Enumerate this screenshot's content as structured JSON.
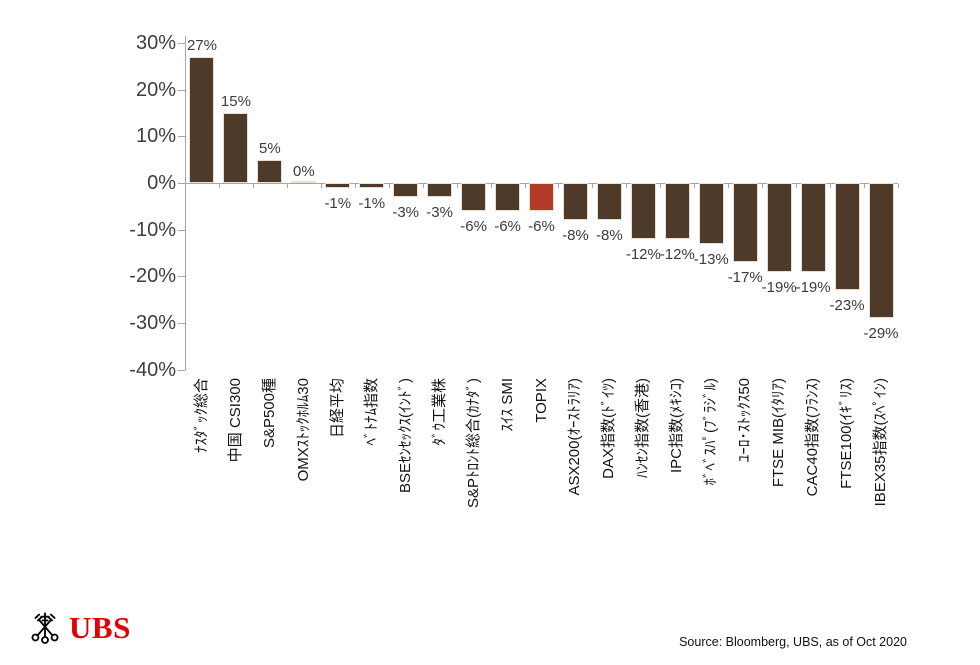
{
  "chart_data": {
    "type": "bar",
    "categories": [
      "ﾅｽﾀﾞｯｸ総合",
      "中国 CSI300",
      "S&P500種",
      "OMXｽﾄｯｸﾎﾙﾑ30",
      "日経平均",
      "ﾍﾞﾄﾅﾑ指数",
      "BSEｾﾝｾｯｸｽ(ｲﾝﾄﾞ)",
      "ﾀﾞｳ工業株",
      "S&Pﾄﾛﾝﾄ総合(ｶﾅﾀﾞ)",
      "ｽｲｽ SMI",
      "TOPIX",
      "ASX200(ｵｰｽﾄﾗﾘｱ)",
      "DAX指数(ﾄﾞｲﾂ)",
      "ﾊﾝｾﾝ指数(香港)",
      "IPC指数(ﾒｷｼｺ)",
      "ﾎﾞﾍﾞｽﾊﾟ(ﾌﾞﾗｼﾞﾙ)",
      "ﾕｰﾛ･ｽﾄｯｸｽ50",
      "FTSE MIB(ｲﾀﾘｱ)",
      "CAC40指数(ﾌﾗﾝｽ)",
      "FTSE100(ｲｷﾞﾘｽ)",
      "IBEX35指数(ｽﾍﾟｲﾝ)"
    ],
    "values": [
      27,
      15,
      5,
      0,
      -1,
      -1,
      -3,
      -3,
      -6,
      -6,
      -6,
      -8,
      -8,
      -12,
      -12,
      -13,
      -17,
      -19,
      -19,
      -23,
      -29
    ],
    "value_labels": [
      "27%",
      "15%",
      "5%",
      "0%",
      "-1%",
      "-1%",
      "-3%",
      "-3%",
      "-6%",
      "-6%",
      "-6%",
      "-8%",
      "-8%",
      "-12%",
      "-12%",
      "-13%",
      "-17%",
      "-19%",
      "-19%",
      "-23%",
      "-29%"
    ],
    "highlight_index": 10,
    "highlight_category": "TOPIX",
    "y_ticks": [
      "30%",
      "20%",
      "10%",
      "0%",
      "-10%",
      "-20%",
      "-30%",
      "-40%"
    ],
    "y_tick_values": [
      30,
      20,
      10,
      0,
      -10,
      -20,
      -30,
      -40
    ],
    "ylim": [
      -40,
      30
    ],
    "grid": "off",
    "legend": "none",
    "bar_color": "#4d3a29",
    "highlight_color": "#b23a27",
    "bar_border_color": "#eadfd0",
    "axis_color": "#a6a6a6",
    "label_color": "#3c3c3c"
  },
  "footer": {
    "logo_text": "UBS",
    "logo_color": "#e30000",
    "source": "Source: Bloomberg, UBS, as of Oct 2020"
  }
}
